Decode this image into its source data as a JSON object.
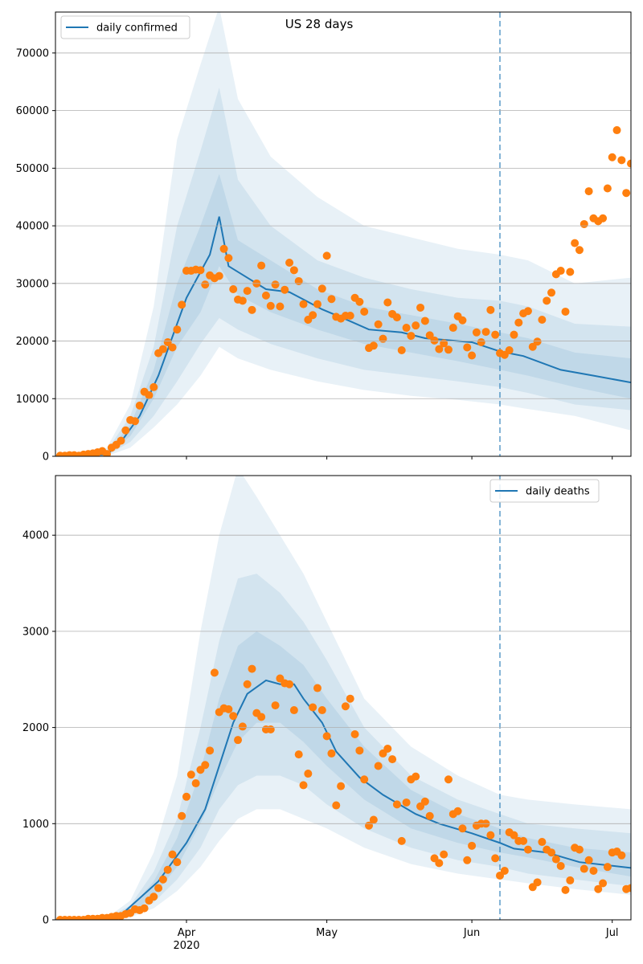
{
  "chart_data": [
    {
      "type": "line",
      "title": "US 28 days",
      "xlim": [
        -1,
        122
      ],
      "xticks": [
        27,
        57,
        88,
        118
      ],
      "show_xtick_labels": false,
      "ylim": [
        0,
        77100
      ],
      "yticks": [
        0,
        10000,
        20000,
        30000,
        40000,
        50000,
        60000,
        70000
      ],
      "grid": true,
      "legend": "upper left",
      "vline_x": 94,
      "band_color": "#1f77b4",
      "band_x": [
        0,
        10,
        15,
        20,
        25,
        30,
        34,
        38,
        45,
        55,
        65,
        75,
        85,
        94,
        100,
        110,
        122
      ],
      "bands": [
        {
          "upper": [
            0,
            1500,
            9000,
            26000,
            55000,
            68000,
            78000,
            62000,
            52000,
            45000,
            40000,
            38000,
            36000,
            35000,
            34000,
            30000,
            31000
          ],
          "lower": [
            0,
            50,
            1500,
            5000,
            9000,
            14000,
            19000,
            17000,
            15000,
            13000,
            11500,
            10500,
            9800,
            9000,
            8200,
            7000,
            4500
          ]
        },
        {
          "upper": [
            0,
            1000,
            7000,
            19000,
            40000,
            53000,
            64000,
            48000,
            40000,
            34000,
            31000,
            29000,
            27500,
            27000,
            26000,
            23000,
            22500
          ],
          "lower": [
            0,
            150,
            2500,
            7000,
            13000,
            19500,
            24000,
            22000,
            19500,
            17000,
            15000,
            14000,
            13000,
            12000,
            11000,
            9000,
            8000
          ]
        },
        {
          "upper": [
            0,
            700,
            5500,
            15000,
            30000,
            40000,
            49000,
            37500,
            34000,
            29000,
            26000,
            24500,
            23000,
            21500,
            20500,
            18000,
            17000
          ],
          "lower": [
            0,
            300,
            3500,
            10000,
            19000,
            25000,
            33000,
            28000,
            25000,
            22000,
            19500,
            18000,
            16500,
            15000,
            14000,
            12000,
            10000
          ]
        }
      ],
      "series": [
        {
          "name": "daily confirmed",
          "kind": "line",
          "color": "#1f77b4",
          "x": [
            0,
            10,
            13,
            17,
            21,
            27,
            32,
            34,
            36,
            39,
            44,
            49,
            56,
            61,
            66,
            73,
            78,
            88,
            94,
            99,
            107,
            114,
            122
          ],
          "values": [
            0,
            300,
            2500,
            7000,
            14000,
            27500,
            35000,
            41600,
            33000,
            31500,
            29000,
            28500,
            25500,
            23800,
            22000,
            21500,
            20500,
            19800,
            18200,
            17400,
            15000,
            14000,
            12800
          ]
        },
        {
          "kind": "scatter",
          "color": "#ff7f0e",
          "x": [
            0,
            1,
            2,
            3,
            4,
            5,
            6,
            7,
            8,
            9,
            10,
            11,
            12,
            13,
            14,
            15,
            16,
            17,
            18,
            19,
            20,
            21,
            22,
            23,
            24,
            25,
            26,
            27,
            28,
            29,
            30,
            31,
            32,
            33,
            34,
            35,
            36,
            37,
            38,
            39,
            40,
            41,
            42,
            43,
            44,
            45,
            46,
            47,
            48,
            49,
            50,
            51,
            52,
            53,
            54,
            55,
            56,
            57,
            58,
            59,
            60,
            61,
            62,
            63,
            64,
            65,
            66,
            67,
            68,
            69,
            70,
            71,
            72,
            73,
            74,
            75,
            76,
            77,
            78,
            79,
            80,
            81,
            82,
            83,
            84,
            85,
            86,
            87,
            88,
            89,
            90,
            91,
            92,
            93,
            94,
            95,
            96,
            97,
            98,
            99,
            100,
            101,
            102,
            103,
            104,
            105,
            106,
            107,
            108,
            109,
            110,
            111,
            112,
            113,
            114,
            115,
            116,
            117,
            118,
            119,
            120,
            121,
            122
          ],
          "values": [
            100,
            100,
            200,
            200,
            100,
            300,
            400,
            500,
            700,
            900,
            400,
            1500,
            2000,
            2700,
            4500,
            6300,
            6100,
            8800,
            11200,
            10600,
            12000,
            17900,
            18600,
            19800,
            18900,
            22000,
            26300,
            32200,
            32200,
            32400,
            32300,
            29800,
            31400,
            30900,
            31300,
            36000,
            34400,
            29000,
            27200,
            27000,
            28700,
            25400,
            30000,
            33100,
            27900,
            26100,
            29800,
            26000,
            28900,
            33600,
            32300,
            30400,
            26400,
            23700,
            24500,
            26400,
            29100,
            34800,
            27300,
            24200,
            23900,
            24400,
            24400,
            27500,
            26800,
            25100,
            18800,
            19200,
            22900,
            20400,
            26700,
            24700,
            24100,
            18400,
            22300,
            20900,
            22700,
            25800,
            23500,
            21000,
            20100,
            18600,
            19600,
            18500,
            22300,
            24300,
            23600,
            18900,
            17500,
            21500,
            19800,
            21600,
            25400,
            21100,
            17900,
            17600,
            18400,
            21100,
            23200,
            24800,
            25200,
            19000,
            19900,
            23700,
            27000,
            28400,
            31600,
            32200,
            25100,
            32000,
            37000,
            35800,
            40300,
            46000,
            41300,
            40800,
            41300,
            46500,
            51900,
            56600,
            51400,
            45700,
            50800
          ]
        }
      ]
    },
    {
      "type": "line",
      "xlim": [
        -1,
        122
      ],
      "xticks": [
        {
          "value": 27,
          "label": "Apr\n2020"
        },
        {
          "value": 57,
          "label": "May"
        },
        {
          "value": 88,
          "label": "Jun"
        },
        {
          "value": 118,
          "label": "Jul"
        }
      ],
      "show_xtick_labels": true,
      "ylim": [
        0,
        4620
      ],
      "yticks": [
        0,
        1000,
        2000,
        3000,
        4000
      ],
      "grid": true,
      "legend": "upper right",
      "vline_x": 94,
      "band_color": "#1f77b4",
      "band_x": [
        0,
        10,
        15,
        20,
        25,
        30,
        34,
        38,
        42,
        47,
        52,
        57,
        65,
        75,
        85,
        94,
        100,
        110,
        122
      ],
      "bands": [
        {
          "upper": [
            0,
            20,
            200,
            700,
            1500,
            3000,
            4000,
            4700,
            4400,
            4000,
            3600,
            3100,
            2300,
            1800,
            1500,
            1300,
            1250,
            1200,
            1150
          ],
          "lower": [
            0,
            1,
            25,
            120,
            300,
            550,
            820,
            1050,
            1150,
            1150,
            1050,
            950,
            750,
            580,
            480,
            420,
            380,
            320,
            260
          ]
        },
        {
          "upper": [
            0,
            15,
            150,
            500,
            1050,
            2000,
            2900,
            3550,
            3600,
            3400,
            3100,
            2700,
            2000,
            1500,
            1250,
            1100,
            1000,
            950,
            900
          ],
          "lower": [
            0,
            3,
            40,
            180,
            420,
            750,
            1150,
            1400,
            1500,
            1500,
            1400,
            1200,
            950,
            750,
            620,
            550,
            480,
            420,
            350
          ]
        },
        {
          "upper": [
            0,
            10,
            120,
            400,
            850,
            1550,
            2300,
            2850,
            3000,
            2850,
            2650,
            2300,
            1800,
            1350,
            1100,
            950,
            850,
            750,
            700
          ],
          "lower": [
            0,
            5,
            60,
            250,
            550,
            1000,
            1450,
            1850,
            2050,
            2050,
            1850,
            1600,
            1250,
            950,
            800,
            700,
            650,
            550,
            450
          ]
        }
      ],
      "series": [
        {
          "name": "daily deaths",
          "kind": "line",
          "color": "#1f77b4",
          "x": [
            0,
            10,
            13,
            21,
            27,
            31,
            34,
            37,
            40,
            44,
            47,
            50,
            52,
            56,
            59,
            64,
            69,
            76,
            81,
            88,
            94,
            97,
            104,
            111,
            122
          ],
          "values": [
            0,
            5,
            50,
            400,
            800,
            1150,
            1600,
            2050,
            2350,
            2490,
            2450,
            2450,
            2300,
            2050,
            1750,
            1480,
            1300,
            1100,
            1000,
            900,
            800,
            740,
            700,
            600,
            540
          ]
        },
        {
          "kind": "scatter",
          "color": "#ff7f0e",
          "x": [
            0,
            1,
            2,
            3,
            4,
            5,
            6,
            7,
            8,
            9,
            10,
            11,
            12,
            13,
            14,
            15,
            16,
            17,
            18,
            19,
            20,
            21,
            22,
            23,
            24,
            25,
            26,
            27,
            28,
            29,
            30,
            31,
            32,
            33,
            34,
            35,
            36,
            37,
            38,
            39,
            40,
            41,
            42,
            43,
            44,
            45,
            46,
            47,
            48,
            49,
            50,
            51,
            52,
            53,
            54,
            55,
            56,
            57,
            58,
            59,
            60,
            61,
            62,
            63,
            64,
            65,
            66,
            67,
            68,
            69,
            70,
            71,
            72,
            73,
            74,
            75,
            76,
            77,
            78,
            79,
            80,
            81,
            82,
            83,
            84,
            85,
            86,
            87,
            88,
            89,
            90,
            91,
            92,
            93,
            94,
            95,
            96,
            97,
            98,
            99,
            100,
            101,
            102,
            103,
            104,
            105,
            106,
            107,
            108,
            109,
            110,
            111,
            112,
            113,
            114,
            115,
            116,
            117,
            118,
            119,
            120,
            121,
            122
          ],
          "values": [
            0,
            0,
            0,
            0,
            0,
            0,
            10,
            10,
            10,
            20,
            20,
            30,
            40,
            40,
            60,
            70,
            110,
            100,
            120,
            200,
            240,
            330,
            420,
            520,
            680,
            600,
            1080,
            1280,
            1510,
            1420,
            1560,
            1610,
            1760,
            2570,
            2160,
            2200,
            2190,
            2120,
            1870,
            2010,
            2450,
            2610,
            2150,
            2110,
            1980,
            1980,
            2230,
            2510,
            2460,
            2450,
            2180,
            1720,
            1400,
            1520,
            2210,
            2410,
            2180,
            1910,
            1730,
            1190,
            1390,
            2220,
            2300,
            1930,
            1760,
            1460,
            980,
            1040,
            1600,
            1730,
            1780,
            1670,
            1200,
            820,
            1220,
            1460,
            1490,
            1180,
            1230,
            1080,
            640,
            590,
            680,
            1460,
            1100,
            1130,
            950,
            620,
            770,
            980,
            1000,
            1000,
            880,
            640,
            460,
            510,
            910,
            880,
            820,
            820,
            730,
            340,
            390,
            810,
            730,
            700,
            630,
            560,
            310,
            410,
            750,
            730,
            530,
            620,
            510,
            320,
            380,
            550,
            700,
            710,
            670,
            320,
            330
          ]
        }
      ]
    }
  ]
}
